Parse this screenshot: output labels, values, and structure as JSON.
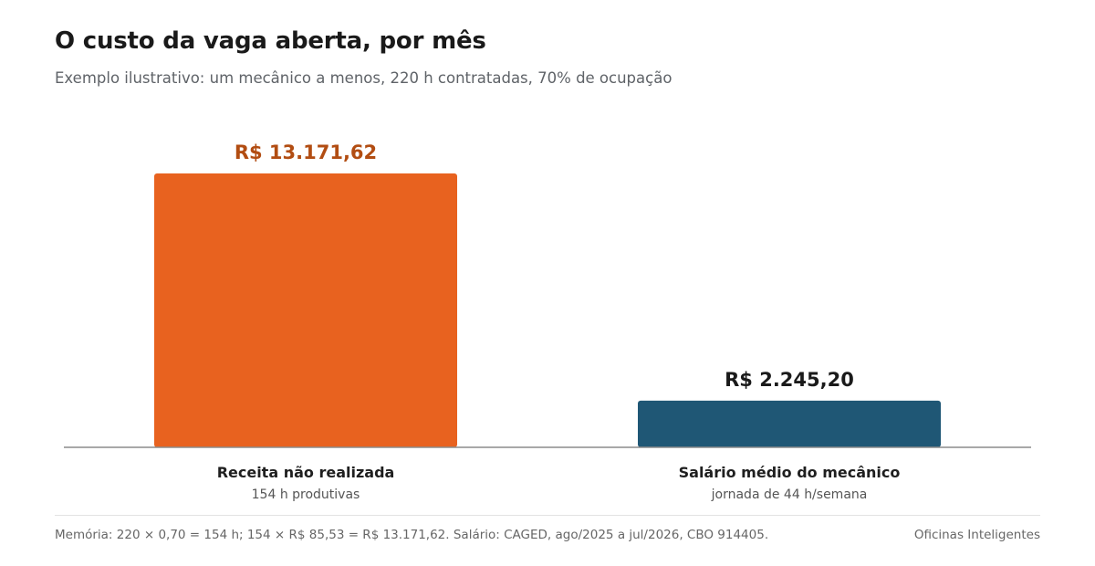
{
  "header": {
    "title": "O custo da vaga aberta, por mês",
    "subtitle": "Exemplo ilustrativo: um mecânico a menos, 220 h contratadas, 70% de ocupação"
  },
  "chart_data": {
    "type": "bar",
    "title": "O custo da vaga aberta, por mês",
    "subtitle": "Exemplo ilustrativo: um mecânico a menos, 220 h contratadas, 70% de ocupação",
    "categories": [
      "Receita não realizada",
      "Salário médio do mecânico"
    ],
    "sublabels": [
      "154 h produtivas",
      "jornada de 44 h/semana"
    ],
    "values": [
      13171.62,
      2245.2
    ],
    "value_labels": [
      "R$ 13.171,62",
      "R$ 2.245,20"
    ],
    "colors": [
      "#e8621f",
      "#1f5775"
    ],
    "value_label_colors": [
      "#b24d12",
      "#1a1a1a"
    ],
    "ylim": [
      0,
      15000
    ],
    "grid": false,
    "legend": "none"
  },
  "footer": {
    "note": "Memória: 220 × 0,70 = 154 h; 154 × R$ 85,53 = R$ 13.171,62. Salário: CAGED, ago/2025 a jul/2026, CBO 914405.",
    "source": "Oficinas Inteligentes"
  }
}
